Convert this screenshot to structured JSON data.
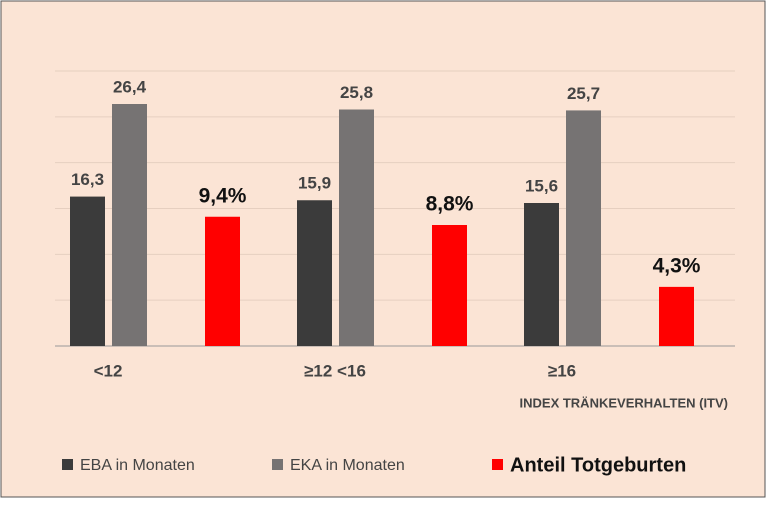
{
  "chart_data": {
    "type": "bar",
    "categories": [
      "<12",
      "≥12  <16",
      "≥16"
    ],
    "x_label": "INDEX TRÄNKEVERHALTEN (ITV)",
    "series": [
      {
        "name": "EBA in Monaten",
        "color": "#3b3b3b",
        "values": [
          16.3,
          15.9,
          15.6
        ],
        "value_labels": [
          "16,3",
          "15,9",
          "15,6"
        ]
      },
      {
        "name": "EKA in Monaten",
        "color": "#767373",
        "values": [
          26.4,
          25.8,
          25.7
        ],
        "value_labels": [
          "26,4",
          "25,8",
          "25,7"
        ]
      },
      {
        "name": "Anteil Totgeburten",
        "color": "#ff0000",
        "axis": "y2",
        "values": [
          9.4,
          8.8,
          4.3
        ],
        "value_labels": [
          "9,4%",
          "8,8%",
          "4,3%"
        ]
      }
    ],
    "ylim": [
      0,
      30
    ],
    "yticks": [
      0,
      5,
      10,
      15,
      20,
      25,
      30
    ],
    "y2lim": [
      0,
      20
    ],
    "grid": true,
    "legend": "bottom"
  }
}
